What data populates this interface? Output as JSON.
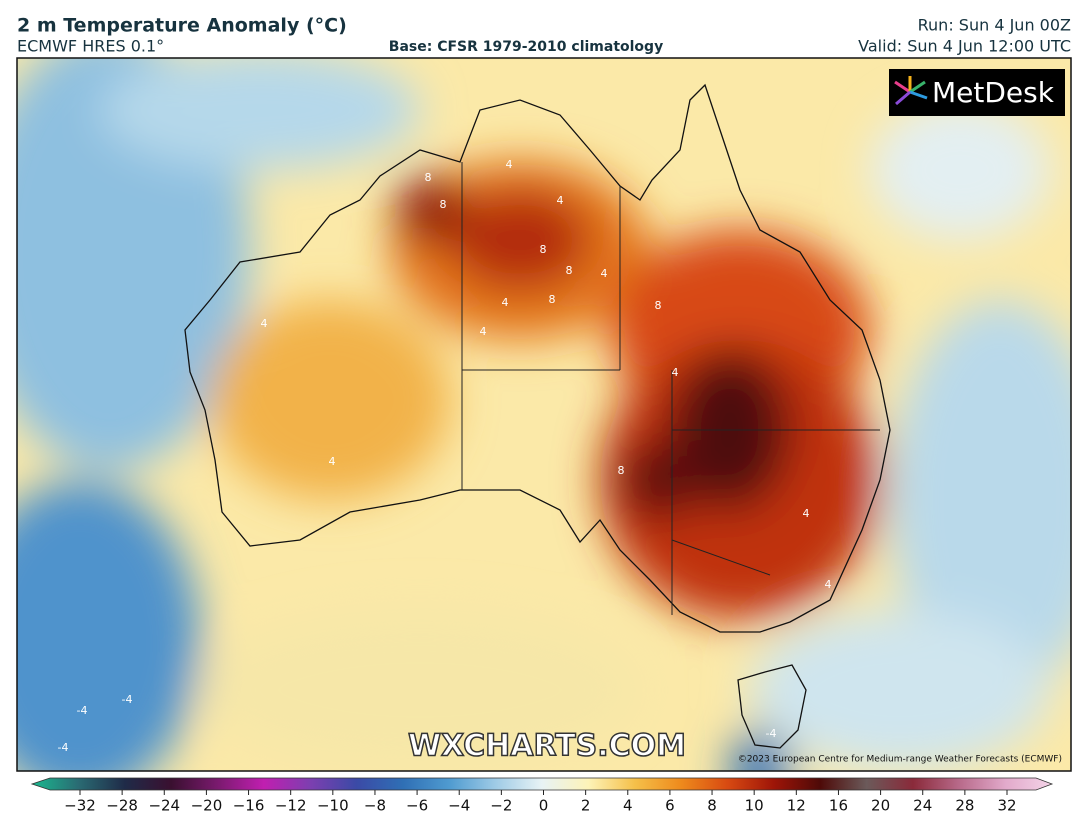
{
  "header": {
    "title": "2 m Temperature Anomaly (°C)",
    "model": "ECMWF HRES 0.1°",
    "base": "Base: CFSR 1979-2010 climatology",
    "run": "Run: Sun 4 Jun 00Z",
    "valid": "Valid: Sun 4 Jun 12:00 UTC"
  },
  "map": {
    "logo": "MetDesk",
    "watermark": "WXCHARTS.COM",
    "copyright": "©2023 European Centre for Medium-range Weather Forecasts (ECMWF)",
    "contour_labels": [
      8,
      8,
      8,
      8,
      8,
      8,
      8,
      4,
      4,
      4,
      4,
      4,
      4,
      4,
      4,
      4,
      4,
      -4,
      -4,
      -4,
      -4
    ]
  },
  "colorbar": {
    "ticks": [
      {
        "value": -32,
        "label": "−32"
      },
      {
        "value": -28,
        "label": "−28"
      },
      {
        "value": -24,
        "label": "−24"
      },
      {
        "value": -20,
        "label": "−20"
      },
      {
        "value": -16,
        "label": "−16"
      },
      {
        "value": -12,
        "label": "−12"
      },
      {
        "value": -10,
        "label": "−10"
      },
      {
        "value": -8,
        "label": "−8"
      },
      {
        "value": -6,
        "label": "−6"
      },
      {
        "value": -4,
        "label": "−4"
      },
      {
        "value": -2,
        "label": "−2"
      },
      0,
      2,
      4,
      6,
      8,
      10,
      12,
      16,
      20,
      24,
      28,
      32
    ],
    "colors": [
      "#1ab98f",
      "#2a6b73",
      "#1f2b48",
      "#3a1030",
      "#7a1a6e",
      "#c01fb0",
      "#7d3fb0",
      "#3b4aa6",
      "#2f6fb5",
      "#4f9bd0",
      "#9fcbe6",
      "#e8f3f5",
      "#fdf3b8",
      "#f5c04a",
      "#ee8a1c",
      "#d84a12",
      "#9e1508",
      "#4e0a08",
      "#6b5a5a",
      "#8a2a3a",
      "#b86a8a",
      "#e2aacb",
      "#f4d4e8"
    ]
  }
}
